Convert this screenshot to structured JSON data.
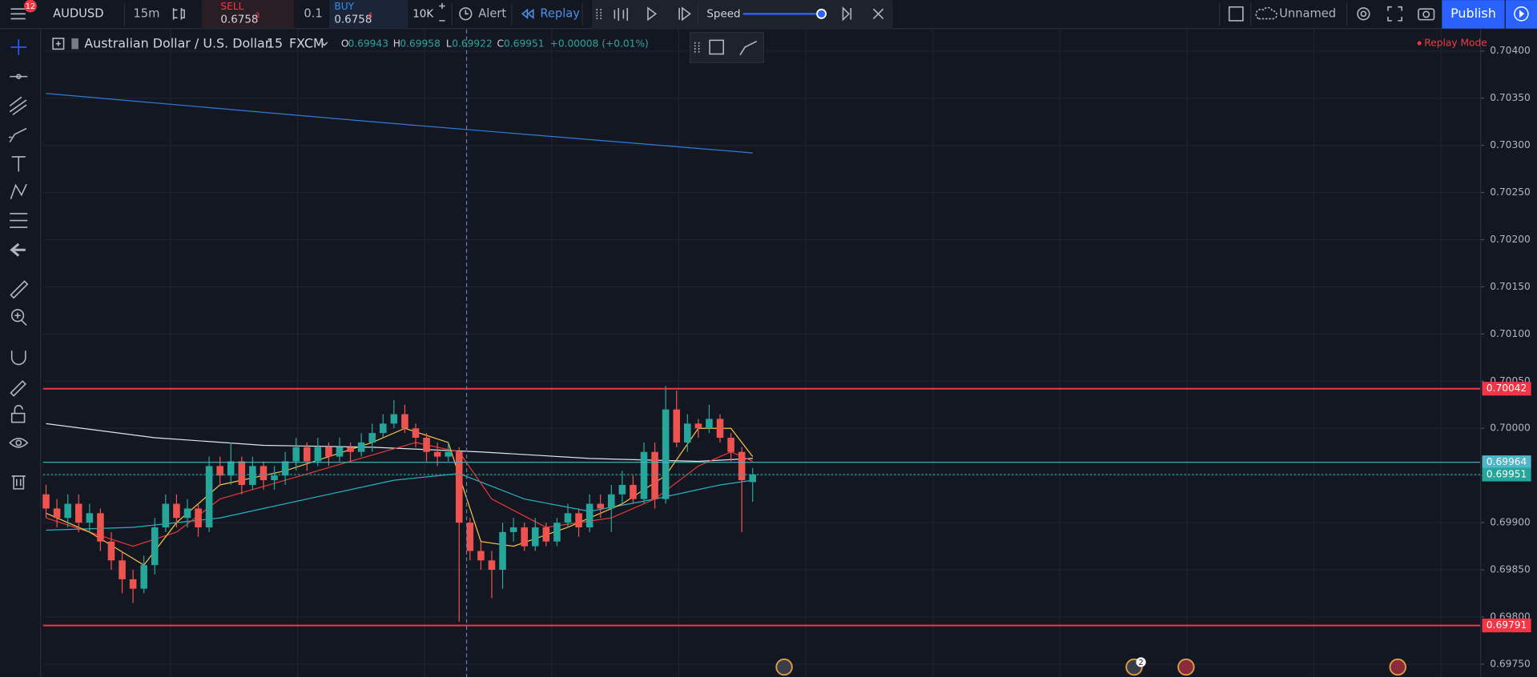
{
  "toolbar": {
    "badge": "12",
    "symbol": "AUDUSD",
    "interval": "15m",
    "sell_label": "SELL",
    "sell_price": "0.6758",
    "sell_pip": "3",
    "spread": "0.1",
    "buy_label": "BUY",
    "buy_price": "0.6758",
    "buy_pip": "4",
    "quantity": "10K",
    "alert": "Alert",
    "replay": "Replay",
    "speed": "Speed",
    "layout_name": "Unnamed",
    "publish": "Publish"
  },
  "legend": {
    "symbol_name": "Australian Dollar / U.S. Dollar",
    "interval": "15",
    "exchange": "FXCM",
    "open_label": "O",
    "open": "0.69943",
    "high_label": "H",
    "high": "0.69958",
    "low_label": "L",
    "low": "0.69922",
    "close_label": "C",
    "close": "0.69951",
    "change": "+0.00008 (+0.01%)"
  },
  "replay_mode": "Replay Mode",
  "event_badge": "2",
  "chart_data": {
    "type": "candlestick",
    "open": [
      0.6993,
      0.69915,
      0.69905,
      0.6992,
      0.699,
      0.6991,
      0.6988,
      0.6986,
      0.6984,
      0.6983,
      0.69855,
      0.69895,
      0.6992,
      0.69905,
      0.69915,
      0.69895,
      0.6996,
      0.6995,
      0.69965,
      0.6994,
      0.6996,
      0.69945,
      0.6995,
      0.69965,
      0.6998,
      0.69965,
      0.6998,
      0.6997,
      0.6998,
      0.69975,
      0.69985,
      0.69995,
      0.70005,
      0.70015,
      0.7,
      0.6999,
      0.69975,
      0.6997,
      0.69975,
      0.699,
      0.6987,
      0.6986,
      0.6985,
      0.6989,
      0.69895,
      0.69875,
      0.69895,
      0.6988,
      0.699,
      0.6991,
      0.69895,
      0.6992,
      0.69915,
      0.6993,
      0.6994,
      0.69925,
      0.69975,
      0.69925,
      0.7002,
      0.69985,
      0.70005,
      0.7,
      0.7001,
      0.6999,
      0.69975,
      0.69943
    ],
    "high": [
      0.6994,
      0.69925,
      0.6993,
      0.6993,
      0.6992,
      0.69915,
      0.6989,
      0.6987,
      0.6985,
      0.69865,
      0.69905,
      0.6993,
      0.6993,
      0.69925,
      0.6992,
      0.6997,
      0.6997,
      0.69985,
      0.6997,
      0.6997,
      0.69965,
      0.6996,
      0.69975,
      0.6999,
      0.69985,
      0.6999,
      0.69985,
      0.6999,
      0.69985,
      0.69995,
      0.70005,
      0.70015,
      0.7003,
      0.70025,
      0.70005,
      0.69995,
      0.69985,
      0.69985,
      0.6998,
      0.69905,
      0.6988,
      0.6987,
      0.699,
      0.69905,
      0.699,
      0.69905,
      0.699,
      0.69905,
      0.6992,
      0.69915,
      0.6993,
      0.6993,
      0.6994,
      0.69955,
      0.6995,
      0.69985,
      0.69985,
      0.70045,
      0.7004,
      0.70015,
      0.7001,
      0.70025,
      0.70015,
      0.69995,
      0.6998,
      0.69958
    ],
    "low": [
      0.69905,
      0.69895,
      0.69895,
      0.6989,
      0.6989,
      0.6987,
      0.6985,
      0.69825,
      0.69815,
      0.69825,
      0.69845,
      0.6989,
      0.69895,
      0.69895,
      0.69885,
      0.6989,
      0.6994,
      0.6994,
      0.6993,
      0.69935,
      0.69935,
      0.69935,
      0.6994,
      0.69955,
      0.69955,
      0.6996,
      0.6996,
      0.69965,
      0.69965,
      0.6997,
      0.69975,
      0.6999,
      0.7,
      0.69995,
      0.6998,
      0.69965,
      0.6996,
      0.69965,
      0.69795,
      0.6986,
      0.6985,
      0.6982,
      0.6983,
      0.6988,
      0.6987,
      0.6987,
      0.69875,
      0.69875,
      0.69895,
      0.69885,
      0.6989,
      0.69905,
      0.6989,
      0.6992,
      0.6992,
      0.6992,
      0.69915,
      0.6992,
      0.6998,
      0.69975,
      0.6999,
      0.69995,
      0.69985,
      0.69965,
      0.6989,
      0.69922
    ],
    "close": [
      0.69915,
      0.69905,
      0.6992,
      0.699,
      0.6991,
      0.6988,
      0.6986,
      0.6984,
      0.6983,
      0.69855,
      0.69895,
      0.6992,
      0.69905,
      0.69915,
      0.69895,
      0.6996,
      0.6995,
      0.69965,
      0.6994,
      0.6996,
      0.69945,
      0.6995,
      0.69965,
      0.6998,
      0.69965,
      0.6998,
      0.6997,
      0.6998,
      0.69975,
      0.69985,
      0.69995,
      0.70005,
      0.70015,
      0.7,
      0.6999,
      0.69975,
      0.6997,
      0.69975,
      0.699,
      0.6987,
      0.6986,
      0.6985,
      0.6989,
      0.69895,
      0.69875,
      0.69895,
      0.6988,
      0.699,
      0.6991,
      0.69895,
      0.6992,
      0.69915,
      0.6993,
      0.6994,
      0.69925,
      0.69975,
      0.69925,
      0.7002,
      0.69985,
      0.70005,
      0.7,
      0.7001,
      0.6999,
      0.69975,
      0.69945,
      0.69951
    ],
    "up_color": "#26a69a",
    "down_color": "#ef5350",
    "ylim": [
      0.697365,
      0.704228
    ],
    "yticks": [
      {
        "value": 0.704,
        "label": "0.70400"
      },
      {
        "value": 0.7035,
        "label": "0.70350"
      },
      {
        "value": 0.703,
        "label": "0.70300"
      },
      {
        "value": 0.7025,
        "label": "0.70250"
      },
      {
        "value": 0.702,
        "label": "0.70200"
      },
      {
        "value": 0.7015,
        "label": "0.70150"
      },
      {
        "value": 0.701,
        "label": "0.70100"
      },
      {
        "value": 0.7005,
        "label": "0.70050"
      },
      {
        "value": 0.7,
        "label": "0.70000"
      },
      {
        "value": 0.6995,
        "label": "0.69950"
      },
      {
        "value": 0.699,
        "label": "0.69900"
      },
      {
        "value": 0.6985,
        "label": "0.69850"
      },
      {
        "value": 0.698,
        "label": "0.69800"
      },
      {
        "value": 0.6975,
        "label": "0.69750"
      }
    ],
    "grid": true,
    "lines": [
      {
        "color": "#2f7bd6",
        "x": [
          0,
          30,
          65
        ],
        "values": [
          0.70355,
          0.70325,
          0.70292
        ]
      },
      {
        "color": "#e0e3eb",
        "x": [
          0,
          10,
          20,
          30,
          40,
          50,
          60,
          65
        ],
        "values": [
          0.70005,
          0.6999,
          0.69982,
          0.6998,
          0.69975,
          0.69968,
          0.69965,
          0.69968
        ]
      },
      {
        "color": "#22b5c4",
        "x": [
          0,
          8,
          16,
          24,
          32,
          38,
          44,
          50,
          56,
          62,
          65
        ],
        "values": [
          0.69892,
          0.69895,
          0.69905,
          0.69925,
          0.69945,
          0.69952,
          0.69925,
          0.69912,
          0.69925,
          0.6994,
          0.69945
        ]
      },
      {
        "color": "#e53935",
        "x": [
          0,
          8,
          12,
          16,
          22,
          28,
          34,
          38,
          41,
          46,
          52,
          56,
          60,
          63,
          65
        ],
        "values": [
          0.69905,
          0.69875,
          0.6989,
          0.69925,
          0.69945,
          0.69965,
          0.69985,
          0.69975,
          0.69925,
          0.69895,
          0.69905,
          0.69925,
          0.6996,
          0.69975,
          0.69965
        ]
      },
      {
        "color": "#f5c542",
        "x": [
          0,
          4,
          9,
          12,
          16,
          22,
          30,
          33,
          37,
          40,
          43,
          48,
          53,
          57,
          60,
          63,
          65
        ],
        "values": [
          0.6991,
          0.6989,
          0.69855,
          0.699,
          0.6994,
          0.69955,
          0.69985,
          0.7,
          0.69985,
          0.6988,
          0.69875,
          0.69895,
          0.6992,
          0.6995,
          0.7,
          0.7,
          0.6997
        ]
      }
    ],
    "hlines": [
      {
        "value": 0.70042,
        "label": "0.70042",
        "color": "#f23645"
      },
      {
        "value": 0.69964,
        "label": "0.69964",
        "color": "#4fb6c9"
      },
      {
        "value": 0.69951,
        "label": "0.69951",
        "color": "#26a69a"
      },
      {
        "value": 0.69791,
        "label": "0.69791",
        "color": "#f23645"
      }
    ]
  }
}
